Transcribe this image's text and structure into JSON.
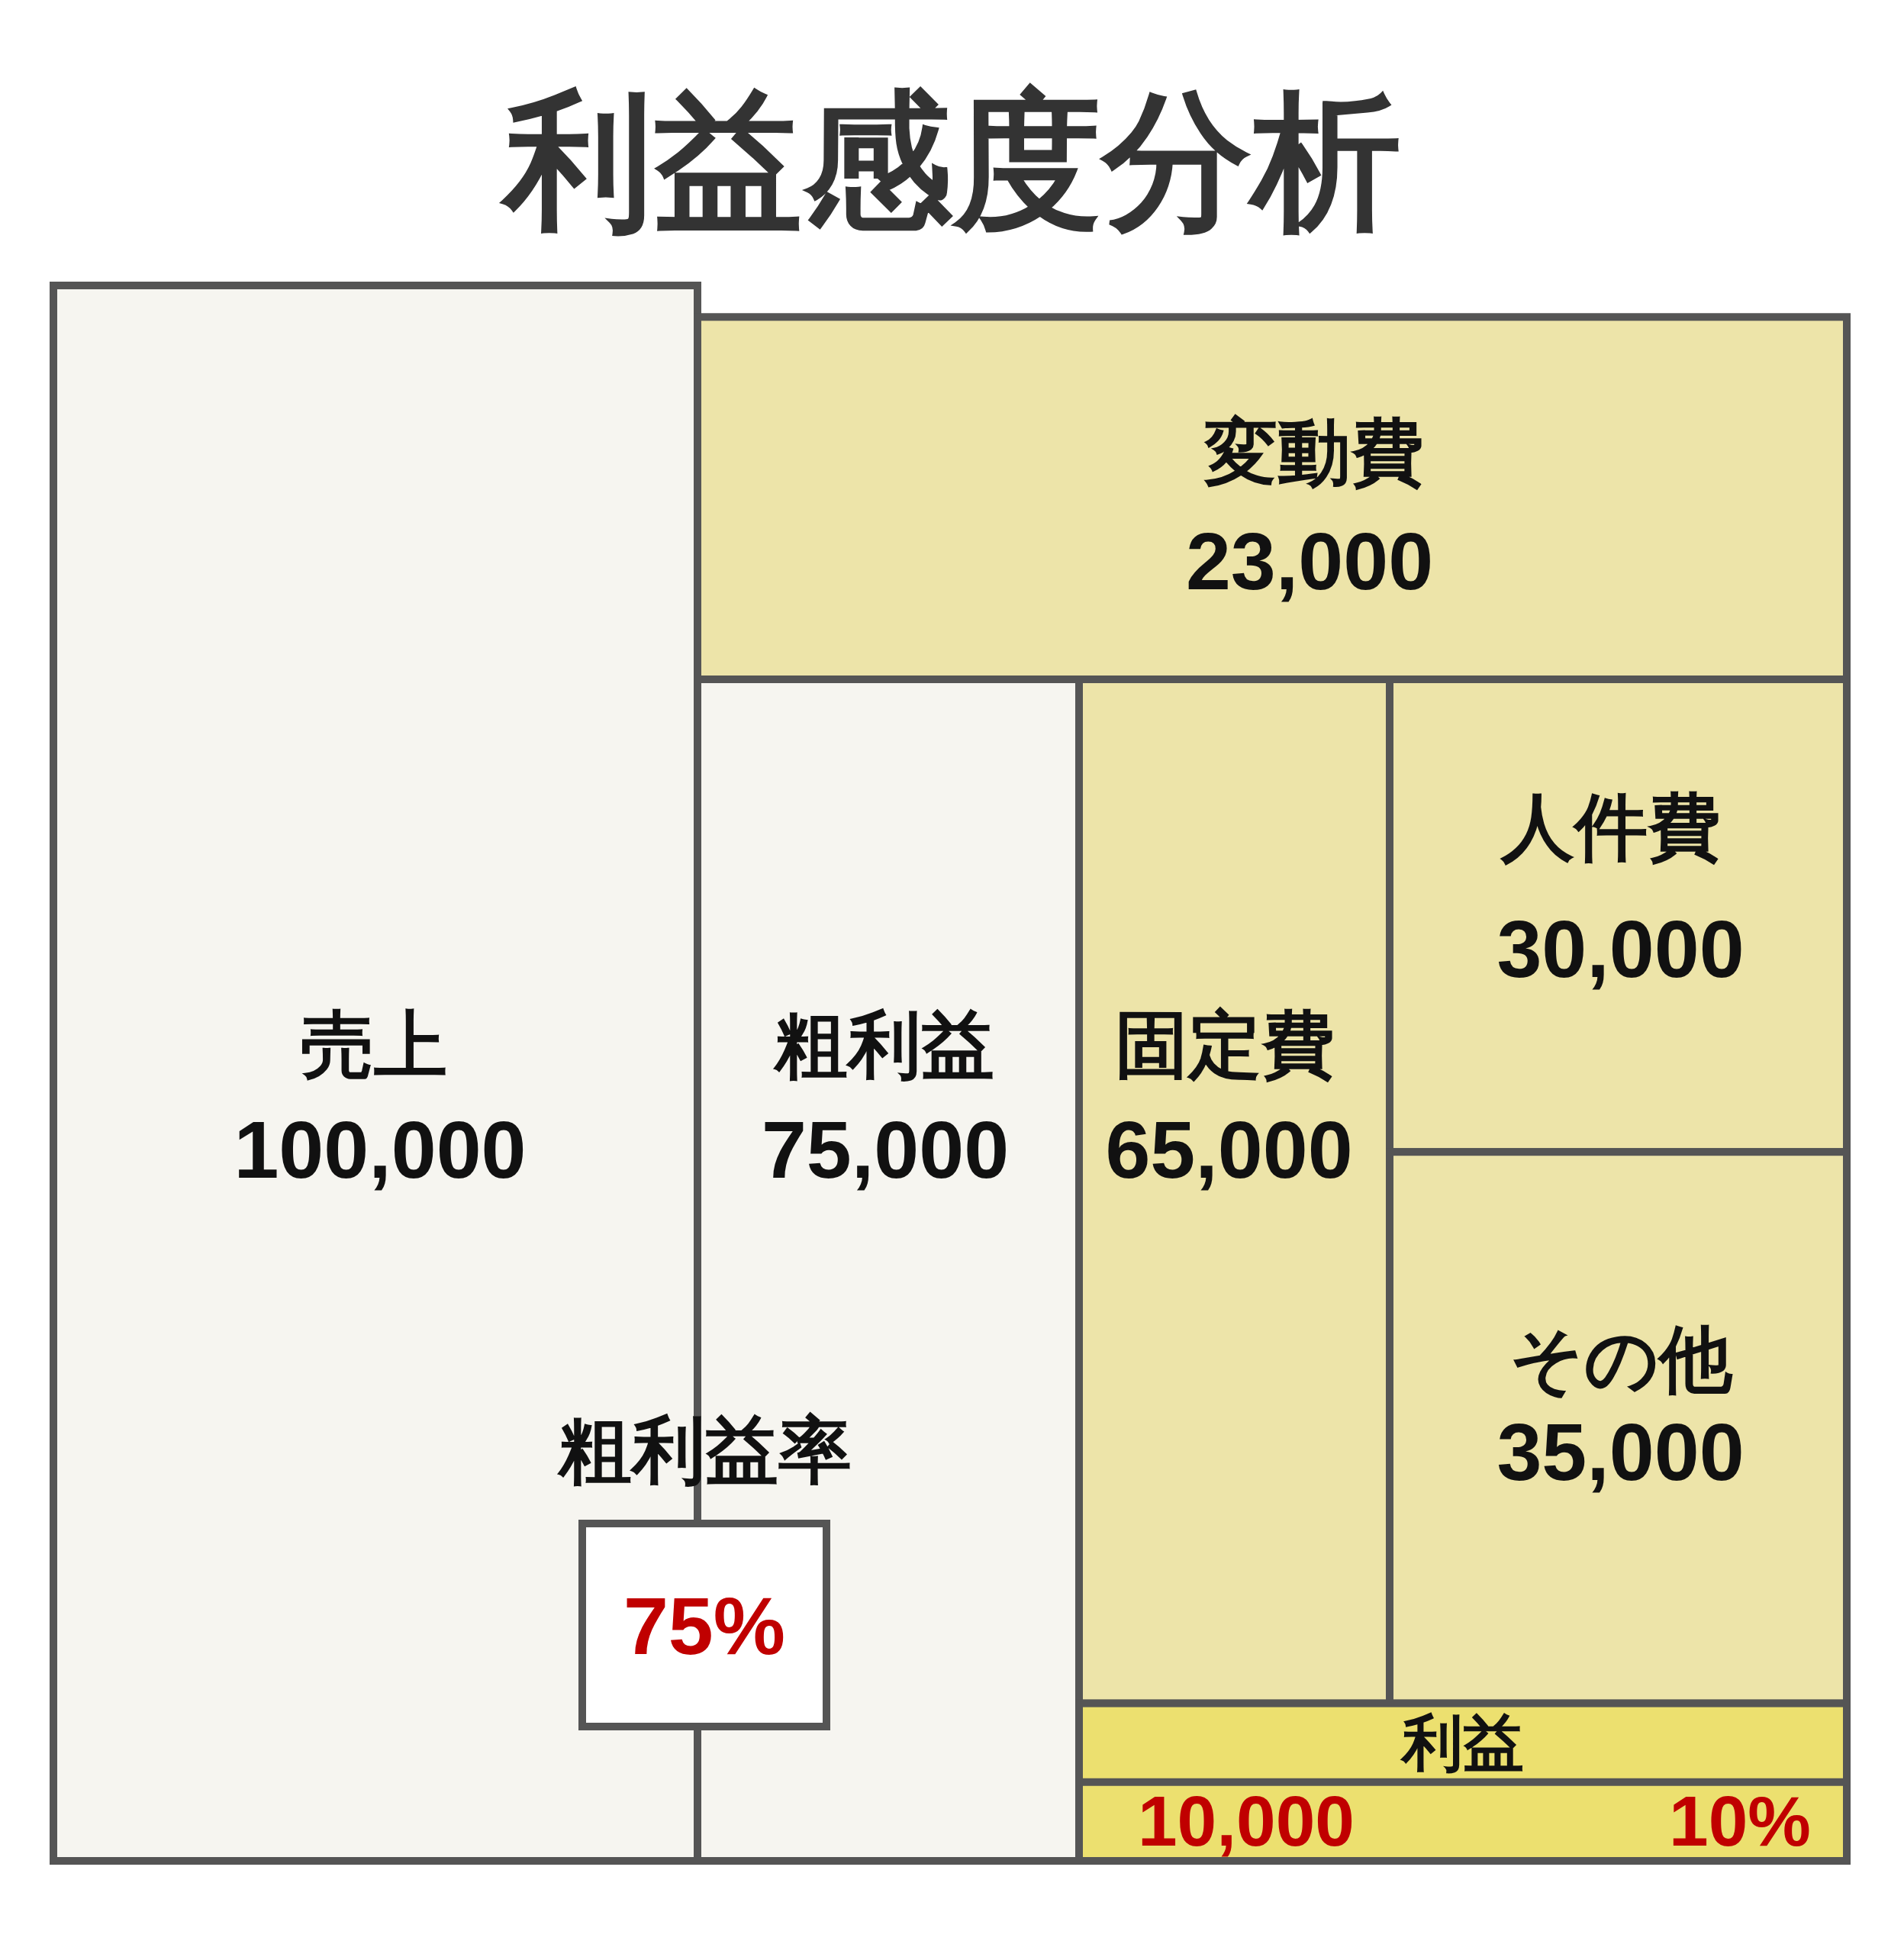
{
  "chart_data": {
    "type": "other",
    "title": "利益感度分析",
    "categories": [
      "売上",
      "変動費",
      "粗利益",
      "固定費",
      "人件費",
      "その他",
      "利益"
    ],
    "values": [
      100000,
      23000,
      75000,
      65000,
      30000,
      35000,
      10000
    ],
    "value_labels": [
      "100,000",
      "23,000",
      "75,000",
      "65,000",
      "30,000",
      "35,000",
      "10,000"
    ],
    "colors": [
      "#f6f5f0",
      "#ede4a9",
      "#f6f5f0",
      "#ede4a9",
      "#ede4a9",
      "#ede4a9",
      "#ece06f"
    ],
    "annotations": [
      "粗利益率",
      "75%",
      "10%"
    ]
  }
}
